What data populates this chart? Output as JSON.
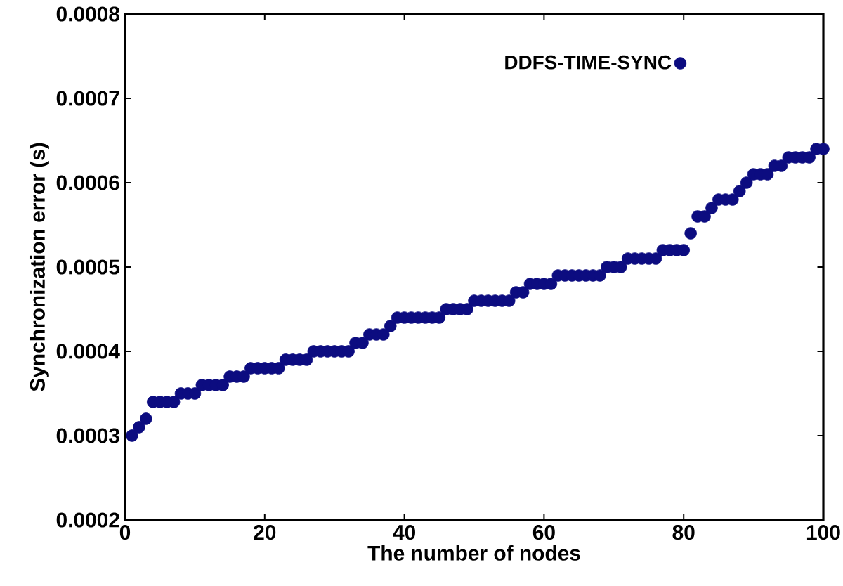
{
  "chart_data": {
    "type": "scatter",
    "xlabel": "The number of nodes",
    "ylabel": "Synchronization error (s)",
    "x": [
      1,
      2,
      3,
      4,
      5,
      6,
      7,
      8,
      9,
      10,
      11,
      12,
      13,
      14,
      15,
      16,
      17,
      18,
      19,
      20,
      21,
      22,
      23,
      24,
      25,
      26,
      27,
      28,
      29,
      30,
      31,
      32,
      33,
      34,
      35,
      36,
      37,
      38,
      39,
      40,
      41,
      42,
      43,
      44,
      45,
      46,
      47,
      48,
      49,
      50,
      51,
      52,
      53,
      54,
      55,
      56,
      57,
      58,
      59,
      60,
      61,
      62,
      63,
      64,
      65,
      66,
      67,
      68,
      69,
      70,
      71,
      72,
      73,
      74,
      75,
      76,
      77,
      78,
      79,
      80,
      81,
      82,
      83,
      84,
      85,
      86,
      87,
      88,
      89,
      90,
      91,
      92,
      93,
      94,
      95,
      96,
      97,
      98,
      99,
      100
    ],
    "series": [
      {
        "name": "DDFS-TIME-SYNC",
        "color": "#0c0c80",
        "values": [
          0.0003,
          0.00031,
          0.00032,
          0.00034,
          0.00034,
          0.00034,
          0.00034,
          0.00035,
          0.00035,
          0.00035,
          0.00036,
          0.00036,
          0.00036,
          0.00036,
          0.00037,
          0.00037,
          0.00037,
          0.00038,
          0.00038,
          0.00038,
          0.00038,
          0.00038,
          0.00039,
          0.00039,
          0.00039,
          0.00039,
          0.0004,
          0.0004,
          0.0004,
          0.0004,
          0.0004,
          0.0004,
          0.00041,
          0.00041,
          0.00042,
          0.00042,
          0.00042,
          0.00043,
          0.00044,
          0.00044,
          0.00044,
          0.00044,
          0.00044,
          0.00044,
          0.00044,
          0.00045,
          0.00045,
          0.00045,
          0.00045,
          0.00046,
          0.00046,
          0.00046,
          0.00046,
          0.00046,
          0.00046,
          0.00047,
          0.00047,
          0.00048,
          0.00048,
          0.00048,
          0.00048,
          0.00049,
          0.00049,
          0.00049,
          0.00049,
          0.00049,
          0.00049,
          0.00049,
          0.0005,
          0.0005,
          0.0005,
          0.00051,
          0.00051,
          0.00051,
          0.00051,
          0.00051,
          0.00052,
          0.00052,
          0.00052,
          0.00052,
          0.00054,
          0.00056,
          0.00056,
          0.00057,
          0.00058,
          0.00058,
          0.00058,
          0.00059,
          0.0006,
          0.00061,
          0.00061,
          0.00061,
          0.00062,
          0.00062,
          0.00063,
          0.00063,
          0.00063,
          0.00063,
          0.00064,
          0.00064
        ]
      }
    ],
    "xlim": [
      0,
      100
    ],
    "ylim": [
      0.0002,
      0.0008
    ],
    "xticks": [
      0,
      20,
      40,
      60,
      80,
      100
    ],
    "yticks": [
      0.0002,
      0.0003,
      0.0004,
      0.0005,
      0.0006,
      0.0007,
      0.0008
    ],
    "marker": "circle",
    "legend": "top right",
    "grid": false
  }
}
